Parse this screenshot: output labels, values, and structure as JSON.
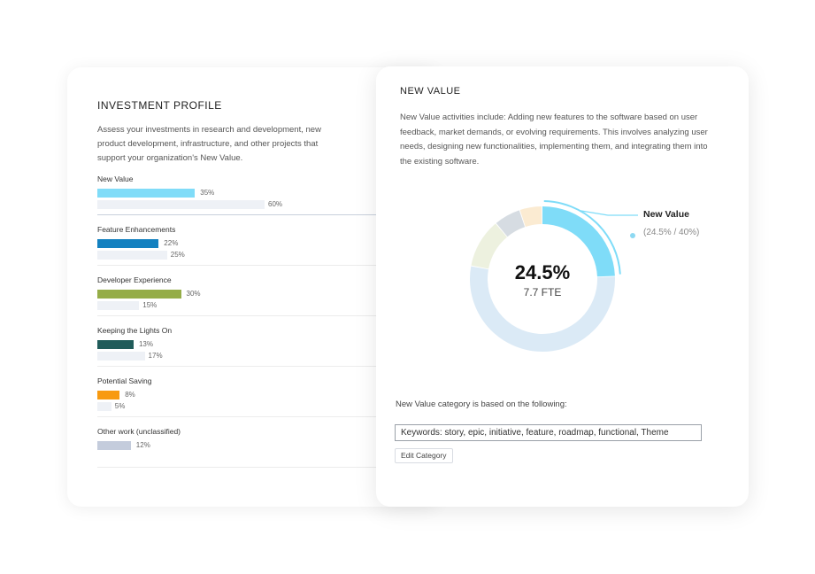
{
  "investment_profile": {
    "title": "INVESTMENT PROFILE",
    "description": "Assess your investments in research and development, new product development, infrastructure, and other projects that support your organization's New Value.",
    "categories": [
      {
        "label": "New Value",
        "actual": 35,
        "actual_label": "35%",
        "target": 60,
        "target_label": "60%",
        "color": "#80dcf8",
        "selected": true
      },
      {
        "label": "Feature Enhancements",
        "actual": 22,
        "actual_label": "22%",
        "target": 25,
        "target_label": "25%",
        "color": "#1481c0",
        "selected": false
      },
      {
        "label": "Developer Experience",
        "actual": 30,
        "actual_label": "30%",
        "target": 15,
        "target_label": "15%",
        "color": "#95ad48",
        "selected": false
      },
      {
        "label": "Keeping the Lights On",
        "actual": 13,
        "actual_label": "13%",
        "target": 17,
        "target_label": "17%",
        "color": "#205c5a",
        "selected": false
      },
      {
        "label": "Potential Saving",
        "actual": 8,
        "actual_label": "8%",
        "target": 5,
        "target_label": "5%",
        "color": "#f89a10",
        "selected": false
      },
      {
        "label": "Other work (unclassified)",
        "actual": 12,
        "actual_label": "12%",
        "target": null,
        "target_label": "",
        "color": "#c4ccdc",
        "selected": false
      }
    ],
    "target_bar_color": "#eef1f6"
  },
  "new_value": {
    "title": "NEW VALUE",
    "description": "New Value activities include: Adding new features to the software based on user feedback, market demands, or evolving requirements. This involves analyzing user needs, designing new functionalities, implementing them, and integrating them into the existing software.",
    "donut": {
      "center_value": "24.5%",
      "center_sub": "7.7 FTE",
      "segments": [
        {
          "name": "New Value",
          "fraction": 0.245,
          "color": "#7fdcf8",
          "highlight": true
        },
        {
          "name": "remaining",
          "fraction": 0.535,
          "color": "#dbeaf6",
          "highlight": false
        },
        {
          "name": "segment-3",
          "fraction": 0.11,
          "color": "#edf1df",
          "highlight": false
        },
        {
          "name": "segment-4",
          "fraction": 0.06,
          "color": "#d6dce2",
          "highlight": false
        },
        {
          "name": "segment-5",
          "fraction": 0.05,
          "color": "#fbebd2",
          "highlight": false
        }
      ],
      "callout_name": "New Value",
      "callout_values": "(24.5% / 40%)"
    },
    "based_on": "New Value category is based on the following:",
    "keywords": "Keywords: story, epic, initiative, feature, roadmap, functional, Theme",
    "edit_button": "Edit Category"
  }
}
